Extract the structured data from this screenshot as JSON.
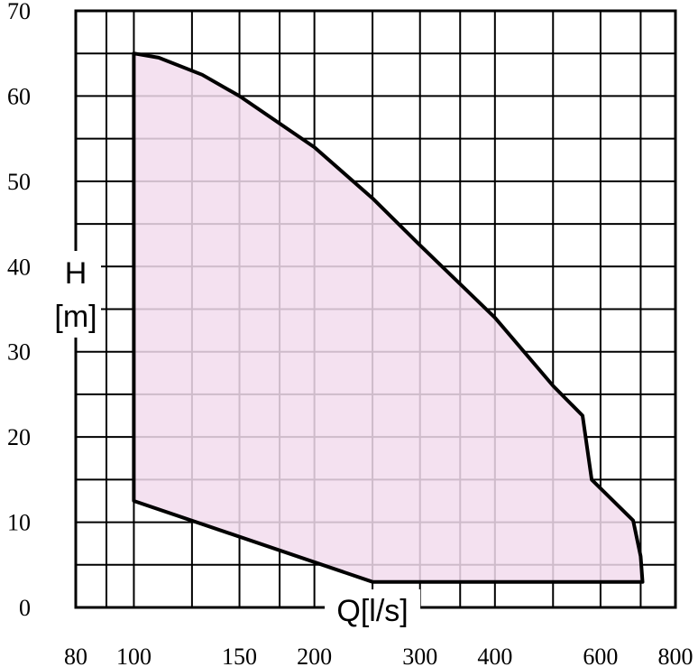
{
  "chart_data": {
    "type": "area",
    "title": "",
    "xlabel": "Q[l/s]",
    "ylabel": [
      "H",
      "[m]"
    ],
    "x_scale": "log",
    "xlim": [
      80,
      800
    ],
    "ylim": [
      0,
      70
    ],
    "x_ticks": [
      80,
      100,
      150,
      200,
      300,
      400,
      600,
      800
    ],
    "x_tick_labels": [
      "80",
      "100",
      "150",
      "200",
      "300",
      "400",
      "600",
      "800"
    ],
    "x_minor_grid": [
      90,
      125,
      175,
      250,
      350,
      500,
      700
    ],
    "y_ticks": [
      0,
      10,
      20,
      30,
      40,
      50,
      60,
      70
    ],
    "y_tick_labels": [
      "0",
      "10",
      "20",
      "30",
      "40",
      "50",
      "60",
      "70"
    ],
    "y_minor_grid": [
      5,
      15,
      25,
      35,
      45,
      55,
      65
    ],
    "grid": true,
    "fill_color": "#f2dced",
    "line_color": "#000000",
    "region": [
      {
        "x": 100,
        "y": 65
      },
      {
        "x": 110,
        "y": 64.5
      },
      {
        "x": 130,
        "y": 62.5
      },
      {
        "x": 150,
        "y": 60
      },
      {
        "x": 200,
        "y": 54
      },
      {
        "x": 250,
        "y": 48
      },
      {
        "x": 300,
        "y": 42.5
      },
      {
        "x": 400,
        "y": 34
      },
      {
        "x": 500,
        "y": 26
      },
      {
        "x": 560,
        "y": 22.5
      },
      {
        "x": 580,
        "y": 15
      },
      {
        "x": 680,
        "y": 10.2
      },
      {
        "x": 700,
        "y": 6
      },
      {
        "x": 705,
        "y": 3
      },
      {
        "x": 250,
        "y": 3
      },
      {
        "x": 100,
        "y": 12.5
      },
      {
        "x": 100,
        "y": 65
      }
    ]
  }
}
